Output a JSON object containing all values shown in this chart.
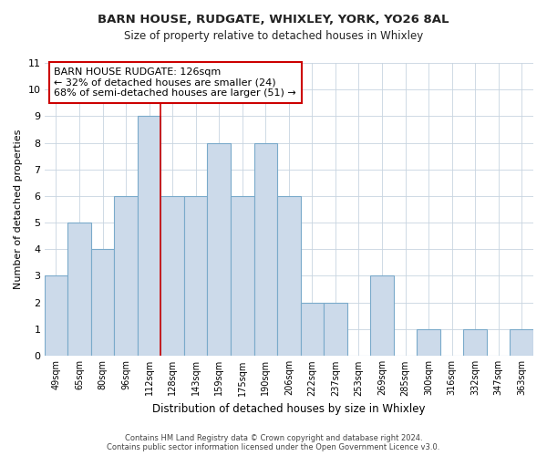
{
  "title": "BARN HOUSE, RUDGATE, WHIXLEY, YORK, YO26 8AL",
  "subtitle": "Size of property relative to detached houses in Whixley",
  "xlabel": "Distribution of detached houses by size in Whixley",
  "ylabel": "Number of detached properties",
  "bin_labels": [
    "49sqm",
    "65sqm",
    "80sqm",
    "96sqm",
    "112sqm",
    "128sqm",
    "143sqm",
    "159sqm",
    "175sqm",
    "190sqm",
    "206sqm",
    "222sqm",
    "237sqm",
    "253sqm",
    "269sqm",
    "285sqm",
    "300sqm",
    "316sqm",
    "332sqm",
    "347sqm",
    "363sqm"
  ],
  "bar_values": [
    3,
    5,
    4,
    6,
    9,
    6,
    6,
    8,
    6,
    8,
    6,
    2,
    2,
    0,
    3,
    0,
    1,
    0,
    1,
    0,
    1
  ],
  "bar_color": "#ccdaea",
  "bar_edge_color": "#7aaaca",
  "reference_line_x": 4.5,
  "reference_line_color": "#cc0000",
  "annotation_text": "BARN HOUSE RUDGATE: 126sqm\n← 32% of detached houses are smaller (24)\n68% of semi-detached houses are larger (51) →",
  "annotation_box_color": "#ffffff",
  "annotation_box_edge": "#cc0000",
  "ylim": [
    0,
    11
  ],
  "yticks": [
    0,
    1,
    2,
    3,
    4,
    5,
    6,
    7,
    8,
    9,
    10,
    11
  ],
  "footer_text": "Contains HM Land Registry data © Crown copyright and database right 2024.\nContains public sector information licensed under the Open Government Licence v3.0.",
  "bg_color": "#ffffff",
  "grid_color": "#c8d4e0"
}
